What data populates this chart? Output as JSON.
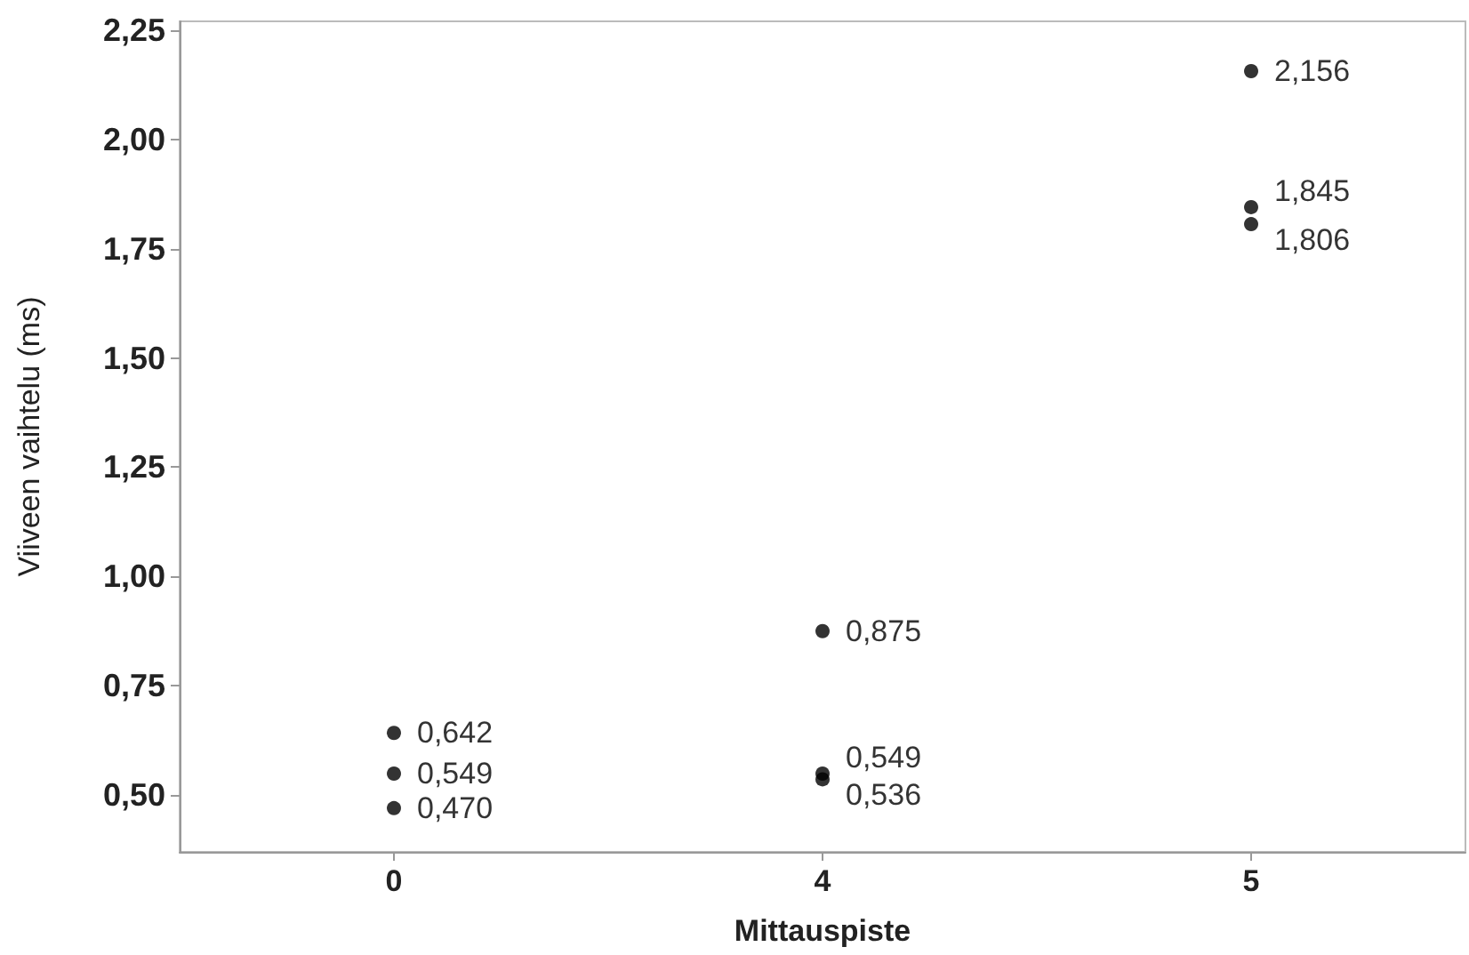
{
  "chart_data": {
    "type": "scatter",
    "xlabel": "Mittauspiste",
    "ylabel": "Viiveen vaihtelu (ms)",
    "categories": [
      "0",
      "4",
      "5"
    ],
    "series": [
      {
        "color": "#000000",
        "x": [
          "0",
          "0",
          "0",
          "4",
          "4",
          "4",
          "5",
          "5",
          "5"
        ],
        "values": [
          0.642,
          0.549,
          0.47,
          0.875,
          0.549,
          0.536,
          2.156,
          1.845,
          1.806
        ],
        "value_labels": [
          "0,642",
          "0,549",
          "0,470",
          "0,875",
          "0,549",
          "0,536",
          "2,156",
          "1,845",
          "1,806"
        ]
      }
    ],
    "ylim": [
      0.37,
      2.27
    ],
    "yticks": [
      {
        "value": 0.5,
        "label": "0,50"
      },
      {
        "value": 0.75,
        "label": "0,75"
      },
      {
        "value": 1.0,
        "label": "1,00"
      },
      {
        "value": 1.25,
        "label": "1,25"
      },
      {
        "value": 1.5,
        "label": "1,50"
      },
      {
        "value": 1.75,
        "label": "1,75"
      },
      {
        "value": 2.0,
        "label": "2,00"
      },
      {
        "value": 2.25,
        "label": "2,25"
      }
    ],
    "grid": false,
    "marker": "circle"
  }
}
